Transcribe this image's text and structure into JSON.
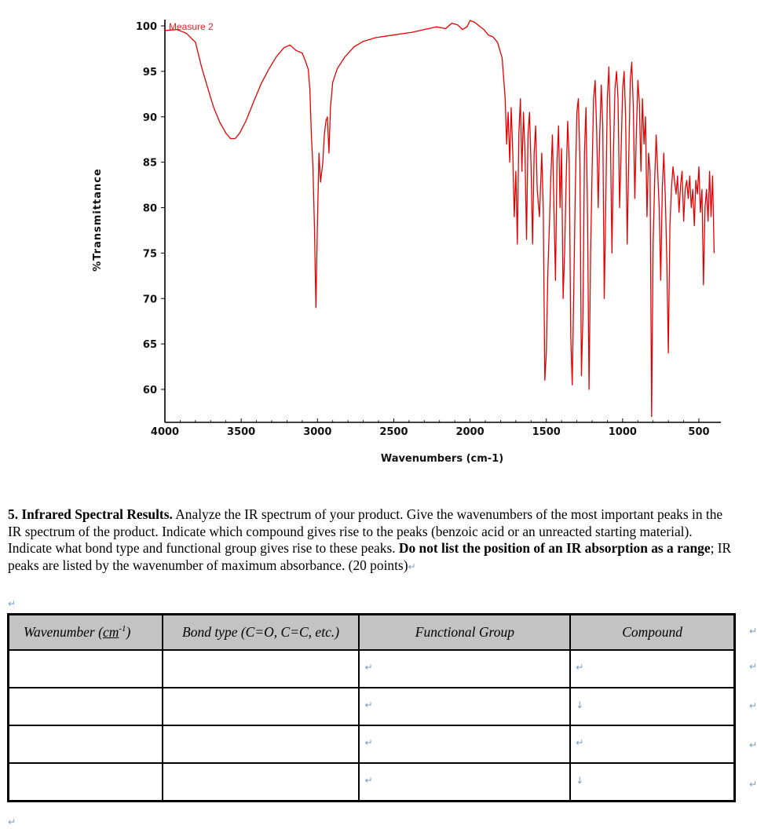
{
  "chart_data": {
    "type": "line",
    "series_name": "Measure 2",
    "xlabel": "Wavenumbers (cm-1)",
    "ylabel": "%Transmittance",
    "xlim": [
      4000,
      400
    ],
    "ylim": [
      57,
      100
    ],
    "x_ticks": [
      4000,
      3500,
      3000,
      2500,
      2000,
      1500,
      1000,
      500
    ],
    "y_ticks": [
      100,
      95,
      90,
      85,
      80,
      75,
      70,
      65,
      60
    ],
    "line_color": "#e60000",
    "points": [
      [
        4000,
        99.5
      ],
      [
        3920,
        99.6
      ],
      [
        3860,
        99.2
      ],
      [
        3800,
        98.2
      ],
      [
        3760,
        95.5
      ],
      [
        3720,
        93.2
      ],
      [
        3680,
        91.0
      ],
      [
        3640,
        89.4
      ],
      [
        3600,
        88.2
      ],
      [
        3570,
        87.6
      ],
      [
        3540,
        87.6
      ],
      [
        3510,
        88.2
      ],
      [
        3470,
        89.5
      ],
      [
        3420,
        91.6
      ],
      [
        3370,
        93.6
      ],
      [
        3320,
        95.2
      ],
      [
        3270,
        96.6
      ],
      [
        3220,
        97.6
      ],
      [
        3180,
        97.9
      ],
      [
        3140,
        97.3
      ],
      [
        3100,
        97.0
      ],
      [
        3080,
        96.2
      ],
      [
        3060,
        95.2
      ],
      [
        3050,
        93.0
      ],
      [
        3040,
        88.0
      ],
      [
        3030,
        84.5
      ],
      [
        3020,
        78.0
      ],
      [
        3010,
        69.0
      ],
      [
        3000,
        78.5
      ],
      [
        2990,
        86.0
      ],
      [
        2980,
        82.8
      ],
      [
        2965,
        85.0
      ],
      [
        2955,
        88.0
      ],
      [
        2945,
        89.5
      ],
      [
        2935,
        90.0
      ],
      [
        2925,
        86.0
      ],
      [
        2915,
        91.0
      ],
      [
        2900,
        93.8
      ],
      [
        2870,
        95.3
      ],
      [
        2820,
        96.6
      ],
      [
        2760,
        97.7
      ],
      [
        2700,
        98.3
      ],
      [
        2620,
        98.7
      ],
      [
        2540,
        98.9
      ],
      [
        2460,
        99.1
      ],
      [
        2380,
        99.3
      ],
      [
        2300,
        99.6
      ],
      [
        2220,
        99.9
      ],
      [
        2160,
        99.7
      ],
      [
        2120,
        100.3
      ],
      [
        2080,
        100.1
      ],
      [
        2050,
        99.6
      ],
      [
        2020,
        99.9
      ],
      [
        2000,
        100.6
      ],
      [
        1970,
        100.4
      ],
      [
        1940,
        100.0
      ],
      [
        1910,
        99.6
      ],
      [
        1880,
        99.0
      ],
      [
        1850,
        98.8
      ],
      [
        1820,
        98.2
      ],
      [
        1790,
        96.5
      ],
      [
        1770,
        92.0
      ],
      [
        1760,
        87.0
      ],
      [
        1750,
        90.5
      ],
      [
        1740,
        85.0
      ],
      [
        1730,
        91.0
      ],
      [
        1720,
        86.0
      ],
      [
        1710,
        79.0
      ],
      [
        1700,
        84.0
      ],
      [
        1690,
        76.0
      ],
      [
        1680,
        88.0
      ],
      [
        1670,
        92.0
      ],
      [
        1660,
        84.0
      ],
      [
        1650,
        90.5
      ],
      [
        1640,
        86.0
      ],
      [
        1630,
        76.5
      ],
      [
        1620,
        88.0
      ],
      [
        1610,
        90.5
      ],
      [
        1600,
        84.5
      ],
      [
        1590,
        76.0
      ],
      [
        1580,
        86.0
      ],
      [
        1570,
        89.0
      ],
      [
        1560,
        82.0
      ],
      [
        1545,
        79.0
      ],
      [
        1530,
        86.0
      ],
      [
        1520,
        80.0
      ],
      [
        1510,
        61.0
      ],
      [
        1500,
        64.0
      ],
      [
        1490,
        73.0
      ],
      [
        1480,
        78.0
      ],
      [
        1470,
        83.5
      ],
      [
        1460,
        88.0
      ],
      [
        1450,
        80.0
      ],
      [
        1440,
        72.0
      ],
      [
        1430,
        85.0
      ],
      [
        1420,
        89.0
      ],
      [
        1410,
        80.0
      ],
      [
        1400,
        86.5
      ],
      [
        1390,
        70.0
      ],
      [
        1380,
        75.0
      ],
      [
        1370,
        83.0
      ],
      [
        1360,
        89.5
      ],
      [
        1350,
        85.0
      ],
      [
        1340,
        66.0
      ],
      [
        1330,
        60.5
      ],
      [
        1320,
        71.0
      ],
      [
        1310,
        82.0
      ],
      [
        1300,
        90.5
      ],
      [
        1290,
        92.0
      ],
      [
        1280,
        85.0
      ],
      [
        1270,
        61.5
      ],
      [
        1260,
        68.0
      ],
      [
        1250,
        86.0
      ],
      [
        1240,
        91.0
      ],
      [
        1230,
        79.0
      ],
      [
        1220,
        60.0
      ],
      [
        1210,
        75.0
      ],
      [
        1200,
        84.0
      ],
      [
        1190,
        92.0
      ],
      [
        1180,
        94.0
      ],
      [
        1170,
        88.5
      ],
      [
        1160,
        80.0
      ],
      [
        1150,
        88.0
      ],
      [
        1140,
        93.5
      ],
      [
        1130,
        89.0
      ],
      [
        1120,
        70.0
      ],
      [
        1110,
        81.0
      ],
      [
        1100,
        92.0
      ],
      [
        1090,
        95.5
      ],
      [
        1080,
        88.0
      ],
      [
        1070,
        75.0
      ],
      [
        1060,
        86.0
      ],
      [
        1050,
        93.0
      ],
      [
        1040,
        95.0
      ],
      [
        1030,
        92.0
      ],
      [
        1020,
        80.0
      ],
      [
        1010,
        86.0
      ],
      [
        1000,
        93.0
      ],
      [
        990,
        95.0
      ],
      [
        980,
        90.0
      ],
      [
        970,
        76.0
      ],
      [
        960,
        85.0
      ],
      [
        950,
        94.0
      ],
      [
        940,
        96.0
      ],
      [
        930,
        91.0
      ],
      [
        920,
        81.0
      ],
      [
        910,
        88.0
      ],
      [
        900,
        94.0
      ],
      [
        890,
        91.5
      ],
      [
        880,
        84.0
      ],
      [
        870,
        92.0
      ],
      [
        860,
        87.0
      ],
      [
        850,
        90.0
      ],
      [
        840,
        79.0
      ],
      [
        830,
        86.0
      ],
      [
        820,
        84.0
      ],
      [
        810,
        57.0
      ],
      [
        800,
        76.0
      ],
      [
        790,
        83.0
      ],
      [
        780,
        88.0
      ],
      [
        770,
        84.0
      ],
      [
        760,
        80.0
      ],
      [
        750,
        72.0
      ],
      [
        740,
        82.0
      ],
      [
        730,
        86.0
      ],
      [
        720,
        81.0
      ],
      [
        710,
        74.0
      ],
      [
        700,
        64.0
      ],
      [
        690,
        78.0
      ],
      [
        680,
        82.0
      ],
      [
        670,
        84.5
      ],
      [
        660,
        83.0
      ],
      [
        650,
        81.5
      ],
      [
        640,
        83.5
      ],
      [
        630,
        79.5
      ],
      [
        620,
        82.5
      ],
      [
        610,
        84.0
      ],
      [
        600,
        78.5
      ],
      [
        590,
        82.0
      ],
      [
        580,
        83.0
      ],
      [
        570,
        81.0
      ],
      [
        560,
        83.5
      ],
      [
        550,
        80.0
      ],
      [
        540,
        82.0
      ],
      [
        530,
        78.0
      ],
      [
        520,
        83.0
      ],
      [
        510,
        81.5
      ],
      [
        500,
        84.5
      ],
      [
        490,
        79.5
      ],
      [
        480,
        82.0
      ],
      [
        470,
        71.5
      ],
      [
        460,
        80.0
      ],
      [
        450,
        82.0
      ],
      [
        440,
        78.5
      ],
      [
        430,
        84.0
      ],
      [
        420,
        79.0
      ],
      [
        410,
        83.5
      ],
      [
        400,
        75.0
      ]
    ]
  },
  "question": {
    "number": "5.",
    "title": "Infrared Spectral Results.",
    "text1": "Analyze the IR spectrum of your product.  Give the wavenumbers of the most important peaks in the IR spectrum of the product.  Indicate which compound gives rise to the peaks (benzoic acid or an unreacted starting material).  Indicate what bond type and functional group gives rise to these peaks.",
    "bold_text": "Do not list the position of an IR absorption as a range",
    "text2": "; IR peaks are listed by the wavenumber of maximum absorbance. (20 points)"
  },
  "table": {
    "headers": {
      "wavenumber_prefix": "Wavenumber (",
      "wavenumber_unit": "cm",
      "wavenumber_exp": "-1",
      "wavenumber_suffix": ")",
      "bond_type": "Bond type (C=O, C=C, etc.)",
      "functional_group": "Functional Group",
      "compound": "Compound"
    },
    "marks": {
      "return": "↵",
      "down": "↓"
    }
  }
}
